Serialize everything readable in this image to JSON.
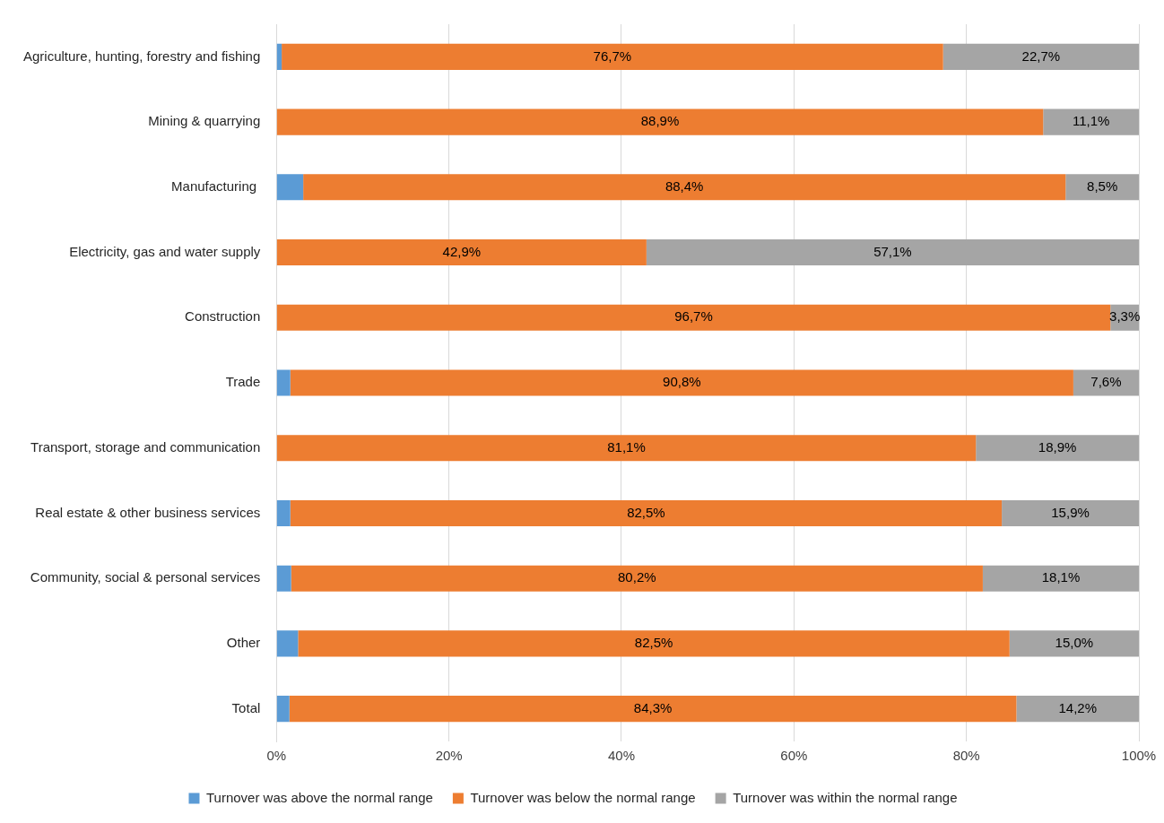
{
  "chart_data": {
    "type": "bar",
    "orientation": "horizontal",
    "stacked": true,
    "categories": [
      "Agriculture, hunting, forestry and fishing",
      "Mining & quarrying",
      "Manufacturing ",
      "Electricity, gas and water supply",
      "Construction",
      "Trade",
      "Transport, storage and communication",
      "Real estate & other business services",
      "Community, social & personal services",
      "Other",
      "Total"
    ],
    "series": [
      {
        "name": "Turnover was above the normal range",
        "color": "#5b9bd5",
        "values": [
          0.6,
          0,
          3.1,
          0,
          0,
          1.6,
          0,
          1.6,
          1.7,
          2.5,
          1.5
        ]
      },
      {
        "name": "Turnover was below the normal range",
        "color": "#ed7d31",
        "values": [
          76.7,
          88.9,
          88.4,
          42.9,
          96.7,
          90.8,
          81.1,
          82.5,
          80.2,
          82.5,
          84.3
        ],
        "value_labels": [
          "76,7%",
          "88,9%",
          "88,4%",
          "42,9%",
          "96,7%",
          "90,8%",
          "81,1%",
          "82,5%",
          "80,2%",
          "82,5%",
          "84,3%"
        ]
      },
      {
        "name": "Turnover was within the normal range",
        "color": "#a5a5a5",
        "values": [
          22.7,
          11.1,
          8.5,
          57.1,
          3.3,
          7.6,
          18.9,
          15.9,
          18.1,
          15.0,
          14.2
        ],
        "value_labels": [
          "22,7%",
          "11,1%",
          "8,5%",
          "57,1%",
          "3,3%",
          "7,6%",
          "18,9%",
          "15,9%",
          "18,1%",
          "15,0%",
          "14,2%"
        ]
      }
    ],
    "xlim": [
      0,
      100
    ],
    "xticks": [
      {
        "value": 0,
        "label": "0%"
      },
      {
        "value": 20,
        "label": "20%"
      },
      {
        "value": 40,
        "label": "40%"
      },
      {
        "value": 60,
        "label": "60%"
      },
      {
        "value": 80,
        "label": "80%"
      },
      {
        "value": 100,
        "label": "100%"
      }
    ],
    "grid": "x",
    "legend": "bottom"
  }
}
